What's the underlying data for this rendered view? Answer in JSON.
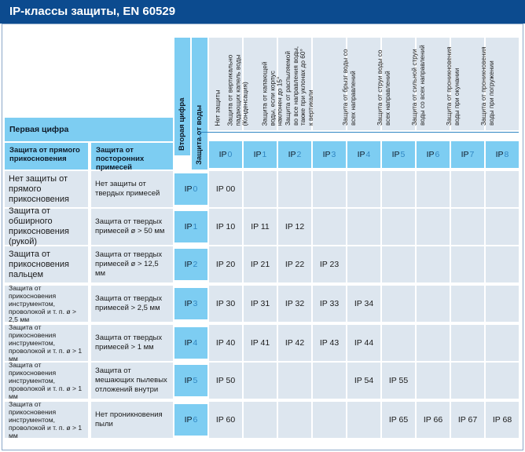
{
  "title": "IP-классы защиты, EN 60529",
  "header": {
    "first_digit": "Первая цифра",
    "second_digit": "Вторая цифра",
    "water_protection": "Защита от воды",
    "touch_protection": "Защита от прямого прикосновения",
    "foreign_protection": "Защита от посторонних примесей"
  },
  "columns": [
    {
      "label": "Нет защиты",
      "code": "IP ",
      "digit": "0"
    },
    {
      "label": "Защита от вертикально\nпадающих капель воды\n(Конденсация)",
      "code": "IP ",
      "digit": "1"
    },
    {
      "label": "Защита от капающей\nводы, если корпус\nнаклонен до 15°",
      "code": "IP ",
      "digit": "2"
    },
    {
      "label": "Защита от распыляемой\nво все направления воды,\nтакже при уклонах до 60°\nк вертикали",
      "code": "IP ",
      "digit": "3"
    },
    {
      "label": "Защита от  брызг воды со\nвсех направлений",
      "code": "IP ",
      "digit": "4"
    },
    {
      "label": "Защита от струи воды со\nвсех направлений",
      "code": "IP ",
      "digit": "5"
    },
    {
      "label": "Защита от сильной струи\nводы со всех направлений",
      "code": "IP ",
      "digit": "6"
    },
    {
      "label": "Защита от проникновения\nводы при окунании",
      "code": "IP ",
      "digit": "7"
    },
    {
      "label": "Защита от проникновения\nводы при погружении",
      "code": "IP ",
      "digit": "8"
    }
  ],
  "rows": [
    {
      "touch": "Нет защиты от прямого прикосновения",
      "foreign": "Нет защиты от твердых примесей",
      "code": "IP ",
      "digit": "0",
      "values": [
        "IP 00",
        "",
        "",
        "",
        "",
        "",
        "",
        "",
        ""
      ]
    },
    {
      "touch": "Защита от обширного прикосновения (рукой)",
      "foreign": "Защита от твердых примесей ø > 50 мм",
      "code": "IP ",
      "digit": "1",
      "values": [
        "IP 10",
        "IP 11",
        "IP 12",
        "",
        "",
        "",
        "",
        "",
        ""
      ]
    },
    {
      "touch": "Защита от прикосновения пальцем",
      "foreign": "Защита от твердых примесей ø > 12,5 мм",
      "code": "IP ",
      "digit": "2",
      "values": [
        "IP 20",
        "IP 21",
        "IP 22",
        "IP 23",
        "",
        "",
        "",
        "",
        ""
      ]
    },
    {
      "touch": "Защита от прикосновения инструментом, проволокой и т. п. ø > 2,5 мм",
      "foreign": "Защита от твердых примесей > 2,5 мм",
      "code": "IP ",
      "digit": "3",
      "values": [
        "IP 30",
        "IP 31",
        "IP 32",
        "IP 33",
        "IP 34",
        "",
        "",
        "",
        ""
      ]
    },
    {
      "touch": "Защита от прикосновения инструментом, проволокой и т. п. ø > 1 мм",
      "foreign": "Защита от твердых примесей > 1 мм",
      "code": "IP ",
      "digit": "4",
      "values": [
        "IP 40",
        "IP 41",
        "IP 42",
        "IP 43",
        "IP 44",
        "",
        "",
        "",
        ""
      ]
    },
    {
      "touch": "Защита от прикосновения инструментом, проволокой и т. п. ø > 1 мм",
      "foreign": "Защита от мешающих пылевых отложений внутри",
      "code": "IP ",
      "digit": "5",
      "values": [
        "IP 50",
        "",
        "",
        "",
        "IP 54",
        "IP 55",
        "",
        "",
        ""
      ]
    },
    {
      "touch": "Защита от прикосновения инструментом, проволокой и т. п. ø > 1 мм",
      "foreign": "Нет проникновения пыли",
      "code": "IP ",
      "digit": "6",
      "values": [
        "IP 60",
        "",
        "",
        "",
        "",
        "IP 65",
        "IP 66",
        "IP 67",
        "IP 68"
      ]
    }
  ],
  "colors": {
    "title_bg": "#0c4b8f",
    "accent": "#7dcdf2",
    "cell": "#dde6ef",
    "digit": "#2f86c2"
  }
}
